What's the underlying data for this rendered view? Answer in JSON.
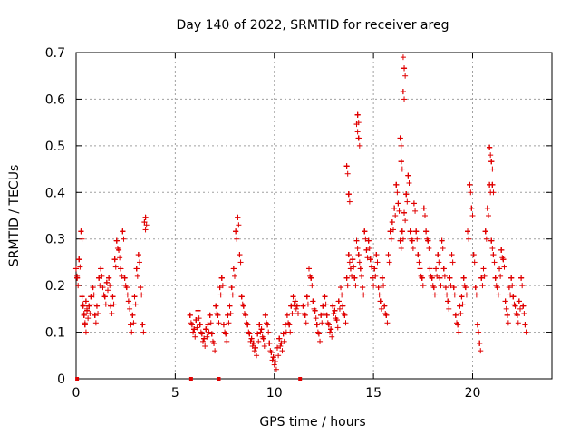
{
  "chart_data": {
    "type": "scatter",
    "title": "Day 140 of 2022, SRMTID for receiver areg",
    "xlabel": "GPS time / hours",
    "ylabel": "SRMTID / TECUs",
    "xlim": [
      0,
      24
    ],
    "ylim": [
      0,
      0.7
    ],
    "xticks": [
      0,
      5,
      10,
      15,
      20
    ],
    "xtick_labels": [
      "0",
      "5",
      "10",
      "15",
      "20"
    ],
    "yticks": [
      0,
      0.1,
      0.2,
      0.3,
      0.4,
      0.5,
      0.6,
      0.7
    ],
    "ytick_labels": [
      "0",
      "0.1",
      "0.2",
      "0.3",
      "0.4",
      "0.5",
      "0.6",
      "0.7"
    ],
    "grid": true,
    "marker": "+",
    "color": "#e00000",
    "series": [
      {
        "name": "SRMTID",
        "x": [
          0.05,
          0.1,
          0.2,
          0.3,
          0.35,
          0.4,
          0.45,
          0.5,
          0.55,
          0.6,
          0.7,
          0.8,
          0.9,
          1.0,
          1.1,
          1.2,
          1.3,
          1.4,
          1.5,
          1.6,
          1.7,
          1.8,
          1.9,
          2.0,
          2.1,
          2.2,
          2.3,
          2.4,
          2.5,
          2.6,
          2.7,
          2.8,
          2.9,
          3.0,
          3.1,
          3.2,
          3.3,
          3.4,
          3.5,
          3.55,
          5.8,
          5.9,
          6.0,
          6.1,
          6.2,
          6.3,
          6.4,
          6.5,
          6.6,
          6.7,
          6.8,
          6.9,
          7.0,
          7.1,
          7.2,
          7.3,
          7.4,
          7.5,
          7.6,
          7.7,
          7.8,
          7.9,
          8.0,
          8.1,
          8.2,
          8.3,
          8.4,
          8.5,
          8.6,
          8.7,
          8.8,
          8.9,
          9.0,
          9.1,
          9.2,
          9.3,
          9.4,
          9.5,
          9.6,
          9.7,
          9.8,
          9.9,
          10.0,
          10.1,
          10.2,
          10.3,
          10.4,
          10.5,
          10.6,
          10.7,
          10.8,
          10.9,
          11.0,
          11.1,
          11.2,
          11.5,
          11.6,
          11.7,
          11.8,
          11.9,
          12.0,
          12.1,
          12.2,
          12.3,
          12.4,
          12.5,
          12.6,
          12.7,
          12.8,
          12.9,
          13.0,
          13.1,
          13.2,
          13.3,
          13.4,
          13.5,
          13.6,
          13.7,
          13.8,
          13.9,
          14.0,
          14.1,
          14.2,
          14.3,
          14.4,
          14.5,
          14.6,
          14.7,
          14.8,
          14.9,
          15.0,
          15.1,
          15.2,
          15.3,
          15.4,
          15.5,
          15.6,
          15.7,
          15.8,
          15.9,
          16.0,
          16.1,
          16.2,
          16.3,
          16.4,
          16.5,
          16.6,
          16.7,
          16.8,
          16.9,
          17.0,
          17.1,
          17.2,
          17.3,
          17.4,
          17.5,
          17.6,
          17.7,
          17.8,
          17.9,
          18.0,
          18.1,
          18.2,
          18.3,
          18.4,
          18.5,
          18.6,
          18.7,
          18.8,
          18.9,
          19.0,
          19.1,
          19.2,
          19.3,
          19.4,
          19.5,
          19.6,
          19.7,
          19.8,
          19.9,
          20.0,
          20.1,
          20.2,
          20.3,
          20.4,
          20.5,
          20.6,
          20.7,
          20.8,
          20.9,
          21.0,
          21.1,
          21.2,
          21.3,
          21.4,
          21.5,
          21.6,
          21.7,
          21.8,
          21.9,
          22.0,
          22.1,
          22.2,
          22.3,
          22.4,
          22.5,
          22.6,
          22.7,
          14.2,
          14.25,
          14.3,
          16.5,
          16.6,
          16.55,
          16.4,
          16.45,
          13.8,
          13.7,
          20.9,
          21.0,
          21.05
        ],
        "y": [
          0.22,
          0.2,
          0.24,
          0.3,
          0.16,
          0.14,
          0.12,
          0.1,
          0.15,
          0.13,
          0.14,
          0.16,
          0.18,
          0.12,
          0.14,
          0.2,
          0.22,
          0.18,
          0.16,
          0.19,
          0.2,
          0.14,
          0.16,
          0.24,
          0.28,
          0.26,
          0.22,
          0.3,
          0.2,
          0.18,
          0.15,
          0.1,
          0.12,
          0.16,
          0.22,
          0.25,
          0.18,
          0.1,
          0.32,
          0.33,
          0.12,
          0.1,
          0.09,
          0.11,
          0.13,
          0.1,
          0.08,
          0.07,
          0.09,
          0.1,
          0.12,
          0.08,
          0.06,
          0.14,
          0.12,
          0.18,
          0.2,
          0.1,
          0.08,
          0.12,
          0.14,
          0.18,
          0.22,
          0.3,
          0.33,
          0.25,
          0.16,
          0.14,
          0.12,
          0.1,
          0.08,
          0.07,
          0.06,
          0.05,
          0.08,
          0.1,
          0.09,
          0.07,
          0.12,
          0.1,
          0.06,
          0.04,
          0.03,
          0.02,
          0.05,
          0.07,
          0.06,
          0.08,
          0.1,
          0.12,
          0.1,
          0.14,
          0.16,
          0.15,
          0.14,
          0.14,
          0.12,
          0.16,
          0.22,
          0.2,
          0.15,
          0.13,
          0.1,
          0.08,
          0.12,
          0.14,
          0.16,
          0.12,
          0.1,
          0.09,
          0.14,
          0.13,
          0.11,
          0.15,
          0.18,
          0.14,
          0.12,
          0.2,
          0.25,
          0.22,
          0.24,
          0.2,
          0.28,
          0.25,
          0.22,
          0.18,
          0.3,
          0.26,
          0.28,
          0.24,
          0.2,
          0.22,
          0.25,
          0.18,
          0.15,
          0.2,
          0.14,
          0.12,
          0.25,
          0.3,
          0.32,
          0.35,
          0.4,
          0.36,
          0.28,
          0.3,
          0.34,
          0.38,
          0.42,
          0.3,
          0.28,
          0.36,
          0.3,
          0.25,
          0.22,
          0.2,
          0.35,
          0.3,
          0.28,
          0.22,
          0.2,
          0.18,
          0.22,
          0.25,
          0.2,
          0.28,
          0.22,
          0.18,
          0.15,
          0.2,
          0.25,
          0.18,
          0.12,
          0.1,
          0.14,
          0.16,
          0.2,
          0.18,
          0.3,
          0.4,
          0.35,
          0.25,
          0.18,
          0.1,
          0.06,
          0.2,
          0.22,
          0.3,
          0.35,
          0.4,
          0.28,
          0.25,
          0.2,
          0.18,
          0.22,
          0.26,
          0.24,
          0.15,
          0.12,
          0.18,
          0.2,
          0.16,
          0.14,
          0.12,
          0.15,
          0.2,
          0.14,
          0.1,
          0.53,
          0.55,
          0.5,
          0.69,
          0.65,
          0.6,
          0.5,
          0.45,
          0.38,
          0.44,
          0.48,
          0.45,
          0.4
        ],
        "zero_points_x": [
          0.05,
          5.8,
          7.2,
          11.3
        ]
      }
    ]
  }
}
